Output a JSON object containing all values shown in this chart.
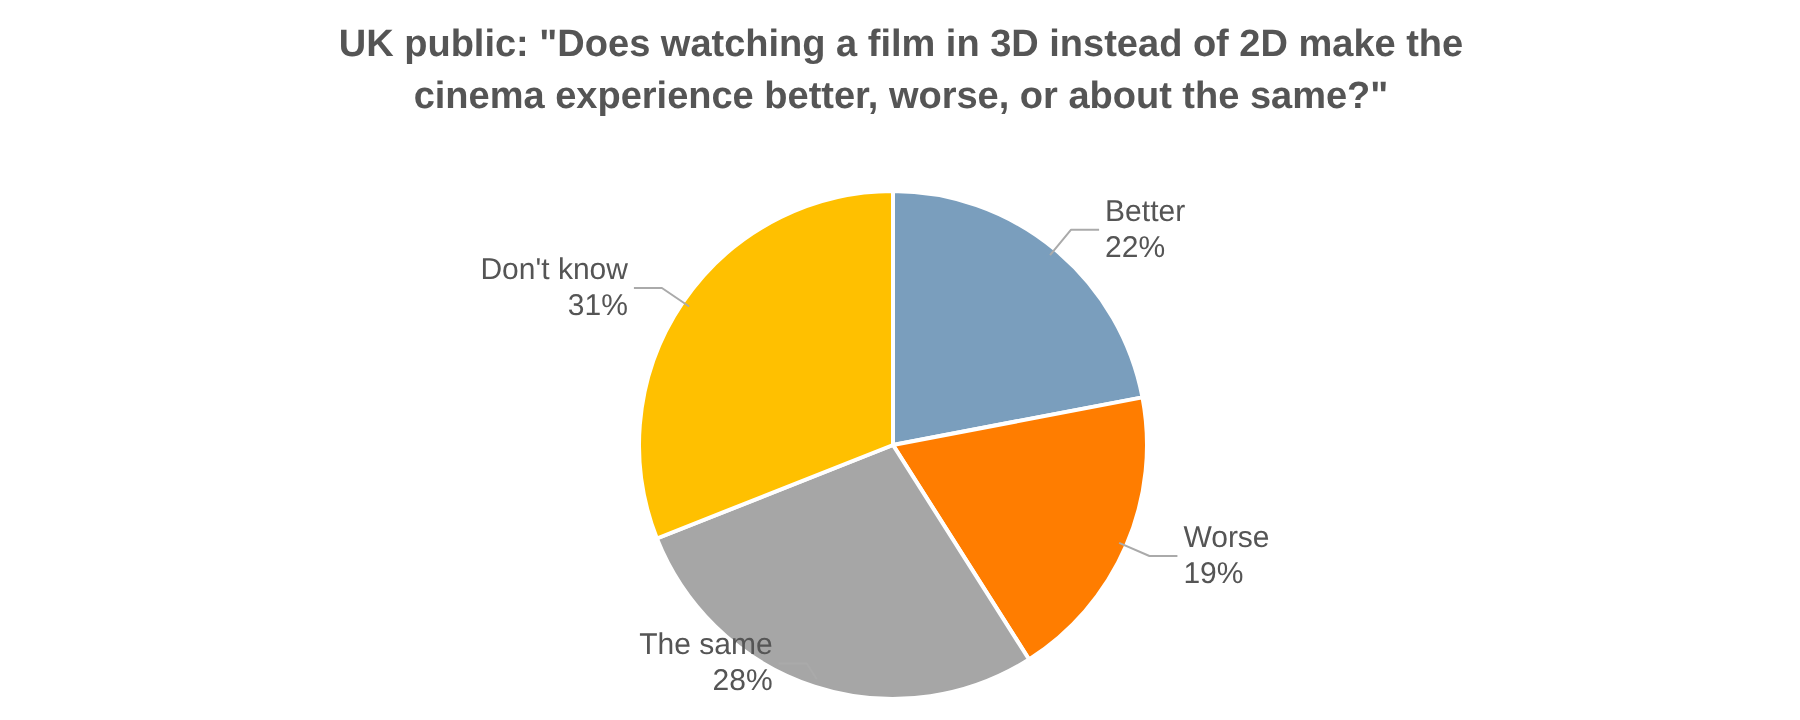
{
  "chart_data": {
    "type": "pie",
    "title": "UK public: \"Does watching a film in 3D instead of 2D make the cinema experience better, worse, or about the same?\"",
    "categories": [
      "Better",
      "Worse",
      "The same",
      "Don't know"
    ],
    "values": [
      22,
      19,
      28,
      31
    ],
    "colors": [
      "#7a9ebd",
      "#ff7d00",
      "#a6a6a6",
      "#ffc000"
    ],
    "value_labels": [
      "22%",
      "19%",
      "28%",
      "31%"
    ]
  }
}
